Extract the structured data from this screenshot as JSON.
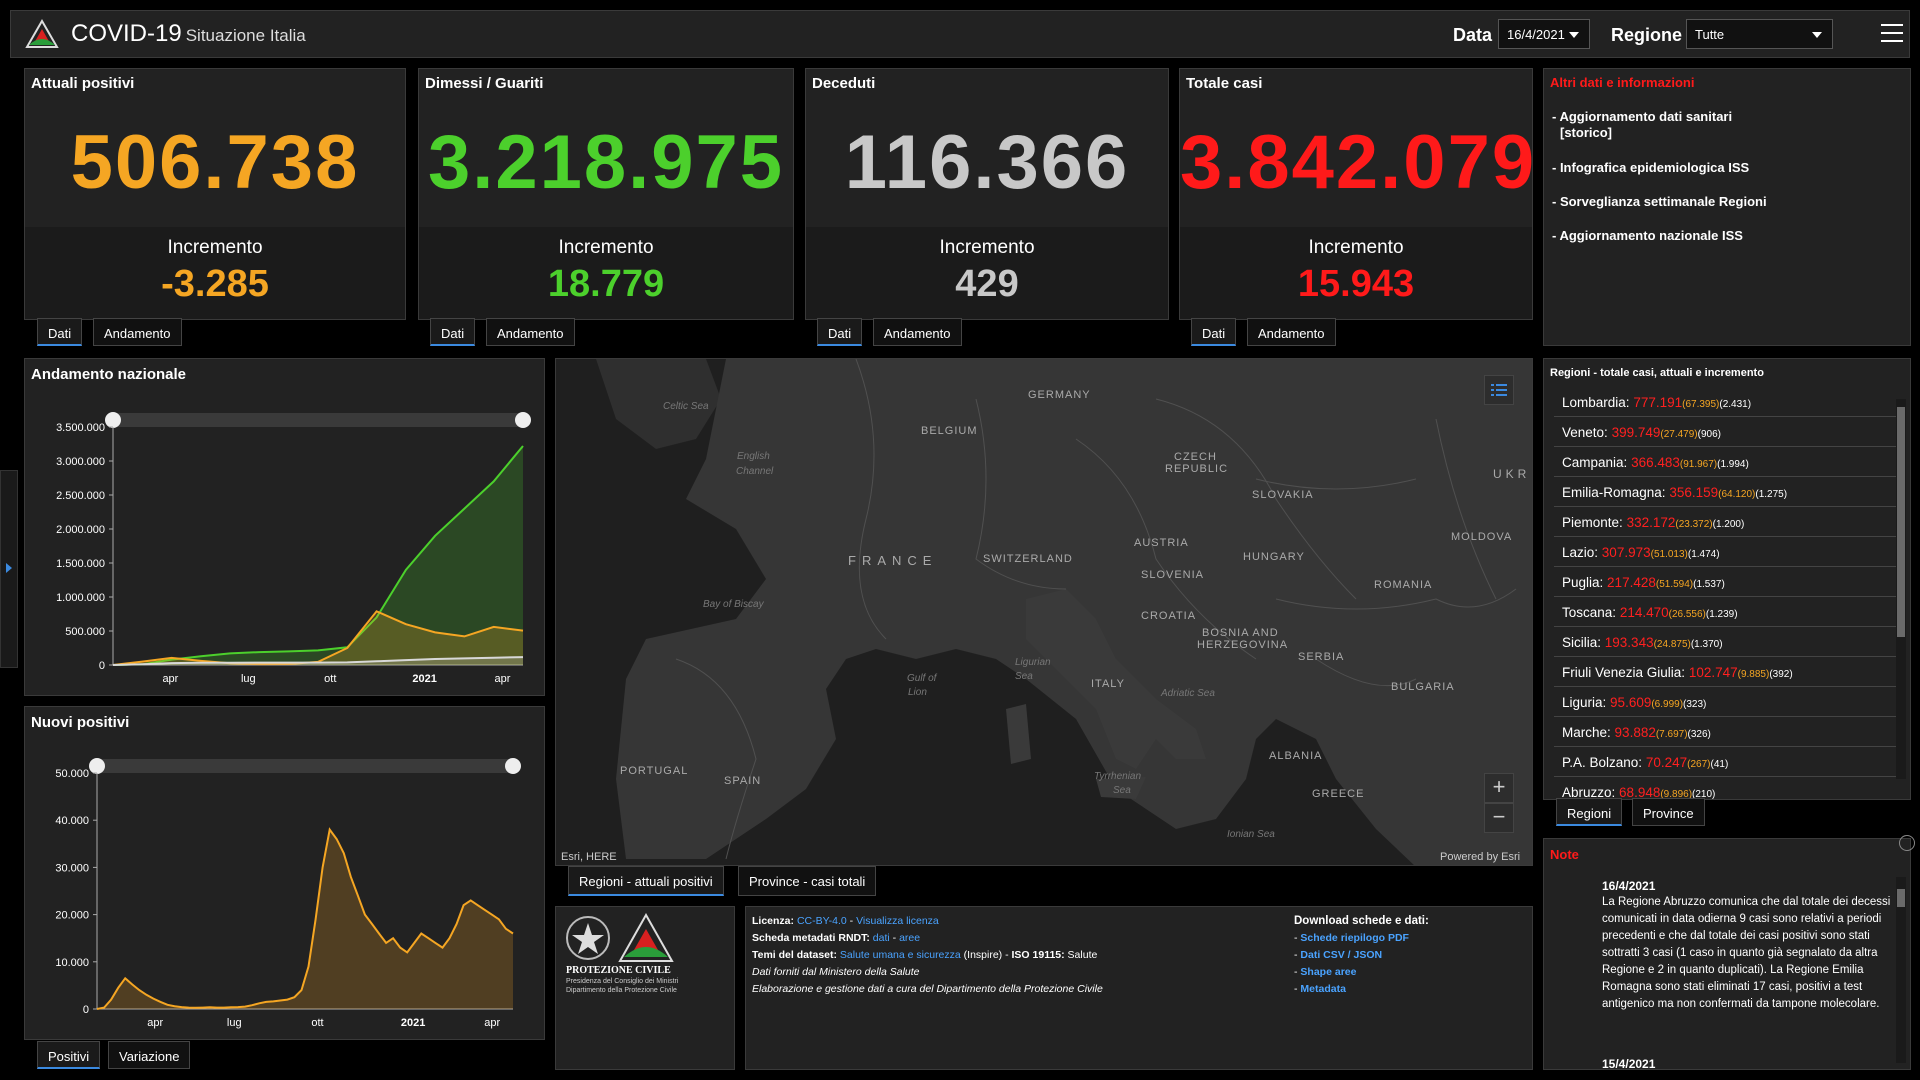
{
  "header": {
    "title": "COVID-19",
    "subtitle": "Situazione Italia",
    "date_label": "Data",
    "date_value": "16/4/2021",
    "region_label": "Regione",
    "region_value": "Tutte"
  },
  "kpis": [
    {
      "title": "Attuali positivi",
      "value": "506.738",
      "inc_label": "Incremento",
      "inc_value": "-3.285",
      "color": "#f5a623"
    },
    {
      "title": "Dimessi / Guariti",
      "value": "3.218.975",
      "inc_label": "Incremento",
      "inc_value": "18.779",
      "color": "#4cd02c"
    },
    {
      "title": "Deceduti",
      "value": "116.366",
      "inc_label": "Incremento",
      "inc_value": "429",
      "color": "#c8c8c8"
    },
    {
      "title": "Totale casi",
      "value": "3.842.079",
      "inc_label": "Incremento",
      "inc_value": "15.943",
      "color": "#ff1a1a"
    }
  ],
  "kpi_tabs": [
    "Dati",
    "Andamento"
  ],
  "info": {
    "title": "Altri dati e informazioni",
    "links": [
      "- Aggiornamento dati sanitari",
      "[storico]",
      "- Infografica epidemiologica ISS",
      "- Sorveglianza settimanale Regioni",
      "- Aggiornamento nazionale ISS"
    ]
  },
  "chart_data": [
    {
      "type": "area",
      "title": "Andamento nazionale",
      "x_ticks": [
        "apr",
        "lug",
        "ott",
        "2021",
        "apr"
      ],
      "y_ticks": [
        "3.500.000",
        "3.000.000",
        "2.500.000",
        "2.000.000",
        "1.500.000",
        "1.000.000",
        "500.000",
        "0"
      ],
      "ylim": [
        0,
        3500000
      ],
      "x": [
        "2020-02",
        "2020-03",
        "2020-04",
        "2020-05",
        "2020-06",
        "2020-07",
        "2020-08",
        "2020-09",
        "2020-10",
        "2020-11",
        "2020-12",
        "2021-01",
        "2021-02",
        "2021-03",
        "2021-04"
      ],
      "series": [
        {
          "color": "#4cd02c",
          "values": [
            0,
            10000,
            80000,
            130000,
            170000,
            190000,
            200000,
            215000,
            260000,
            700000,
            1400000,
            1900000,
            2300000,
            2700000,
            3220000
          ]
        },
        {
          "color": "#f5a623",
          "values": [
            0,
            50000,
            105000,
            60000,
            25000,
            13000,
            15000,
            45000,
            250000,
            790000,
            600000,
            480000,
            420000,
            560000,
            506000
          ]
        },
        {
          "color": "#d8d8d8",
          "values": [
            0,
            10000,
            28000,
            33000,
            34500,
            35100,
            35400,
            35800,
            38000,
            55000,
            72000,
            88000,
            97000,
            108000,
            116000
          ]
        }
      ]
    },
    {
      "type": "area",
      "title": "Nuovi positivi",
      "x_ticks": [
        "apr",
        "lug",
        "ott",
        "2021",
        "apr"
      ],
      "y_ticks": [
        "50.000",
        "40.000",
        "30.000",
        "20.000",
        "10.000",
        "0"
      ],
      "ylim": [
        0,
        50000
      ],
      "series": [
        {
          "color": "#f5a623",
          "values": [
            0,
            300,
            2000,
            4500,
            6500,
            5200,
            4000,
            3000,
            2200,
            1500,
            900,
            600,
            400,
            300,
            250,
            300,
            350,
            300,
            300,
            350,
            400,
            500,
            800,
            1200,
            1500,
            1600,
            1800,
            2000,
            2500,
            4000,
            9000,
            19000,
            30000,
            38000,
            36000,
            33000,
            28000,
            24000,
            20000,
            18000,
            16000,
            14000,
            15000,
            13000,
            12000,
            14000,
            16000,
            15000,
            14000,
            13000,
            15000,
            18000,
            22000,
            23000,
            22000,
            21000,
            20000,
            19000,
            17000,
            16000
          ]
        }
      ]
    }
  ],
  "chart_tabs_top": [
    "Positivi",
    "Variazione"
  ],
  "map": {
    "attribution": "Esri, HERE",
    "powered": "Powered by Esri",
    "countries": [
      "GERMANY",
      "BELGIUM",
      "CZECH",
      "REPUBLIC",
      "SLOVAKIA",
      "FRANCE",
      "SWITZERLAND",
      "AUSTRIA",
      "HUNGARY",
      "MOLDOVA",
      "SLOVENIA",
      "ROMANIA",
      "CROATIA",
      "BOSNIA AND",
      "HERZEGOVINA",
      "SERBIA",
      "ITALY",
      "BULGARIA",
      "PORTUGAL",
      "SPAIN",
      "ALBANIA",
      "GREECE",
      "UKR"
    ],
    "seas": [
      "Celtic Sea",
      "English",
      "Channel",
      "Bay of Biscay",
      "Gulf of",
      "Lion",
      "Ligurian",
      "Sea",
      "Adriatic Sea",
      "Tyrrhenian",
      "Sea",
      "Ionian Sea"
    ],
    "tabs": [
      "Regioni - attuali positivi",
      "Province - casi totali"
    ]
  },
  "regions": {
    "title": "Regioni - totale casi, attuali e incremento",
    "items": [
      {
        "name": "Lombardia:",
        "total": "777.191",
        "active": "(67.395)",
        "inc": "(2.431)"
      },
      {
        "name": "Veneto:",
        "total": "399.749",
        "active": "(27.479)",
        "inc": "(906)"
      },
      {
        "name": "Campania:",
        "total": "366.483",
        "active": "(91.967)",
        "inc": "(1.994)"
      },
      {
        "name": "Emilia-Romagna:",
        "total": "356.159",
        "active": "(64.120)",
        "inc": "(1.275)"
      },
      {
        "name": "Piemonte:",
        "total": "332.172",
        "active": "(23.372)",
        "inc": "(1.200)"
      },
      {
        "name": "Lazio:",
        "total": "307.973",
        "active": "(51.013)",
        "inc": "(1.474)"
      },
      {
        "name": "Puglia:",
        "total": "217.428",
        "active": "(51.594)",
        "inc": "(1.537)"
      },
      {
        "name": "Toscana:",
        "total": "214.470",
        "active": "(26.556)",
        "inc": "(1.239)"
      },
      {
        "name": "Sicilia:",
        "total": "193.343",
        "active": "(24.875)",
        "inc": "(1.370)"
      },
      {
        "name": "Friuli Venezia Giulia:",
        "total": "102.747",
        "active": "(9.885)",
        "inc": "(392)"
      },
      {
        "name": "Liguria:",
        "total": "95.609",
        "active": "(6.999)",
        "inc": "(323)"
      },
      {
        "name": "Marche:",
        "total": "93.882",
        "active": "(7.697)",
        "inc": "(326)"
      },
      {
        "name": "P.A. Bolzano:",
        "total": "70.247",
        "active": "(267)",
        "inc": "(41)"
      },
      {
        "name": "Abruzzo:",
        "total": "68.948",
        "active": "(9.896)",
        "inc": "(210)"
      }
    ],
    "tabs": [
      "Regioni",
      "Province"
    ]
  },
  "notes": {
    "title": "Note",
    "entries": [
      {
        "date": "16/4/2021",
        "text": "La Regione Abruzzo comunica che dal totale dei decessi comunicati in data odierna 9 casi sono relativi a periodi precedenti e che dal totale dei casi positivi sono stati sottratti 3 casi (1 caso in quanto già segnalato da altra Regione e 2 in quanto duplicati). La Regione Emilia Romagna sono stati eliminati 17 casi, positivi a test antigenico ma non confermati da tampone molecolare."
      },
      {
        "date": "15/4/2021",
        "text": ""
      }
    ]
  },
  "footer": {
    "logo_title": "PROTEZIONE CIVILE",
    "logo_sub1": "Presidenza del Consiglio dei Ministri",
    "logo_sub2": "Dipartimento della Protezione Civile",
    "licenza_label": "Licenza:",
    "licenza_link1": "CC-BY-4.0",
    "licenza_sep": " - ",
    "licenza_link2": "Visualizza licenza",
    "metadati_label": "Scheda metadati RNDT:",
    "metadati_link1": "dati",
    "metadati_sep": " - ",
    "metadati_link2": "aree",
    "temi_label": "Temi del dataset:",
    "temi_link": "Salute umana e sicurezza",
    "temi_rest": " (Inspire) - ",
    "temi_iso": "ISO 19115:",
    "temi_iso_val": " Salute",
    "line4": "Dati forniti dal Ministero della Salute",
    "line5": "Elaborazione e gestione dati a cura del Dipartimento della Protezione Civile",
    "download_title": "Download schede e dati:",
    "downloads": [
      "Schede riepilogo PDF",
      "Dati CSV / JSON",
      "Shape aree",
      "Metadata"
    ]
  }
}
